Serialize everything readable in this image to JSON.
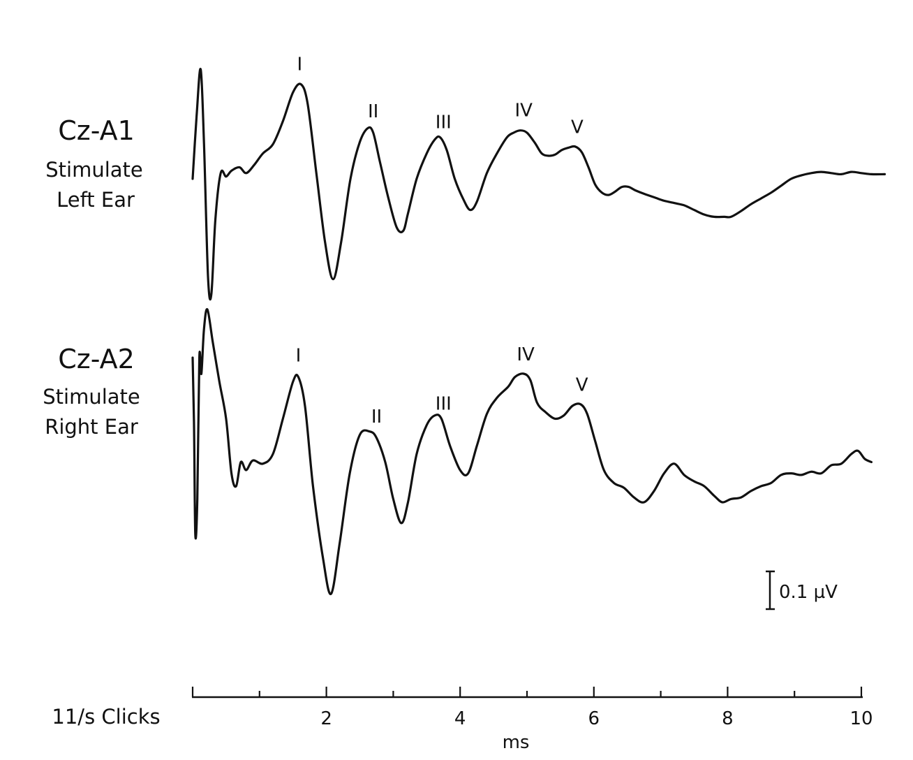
{
  "chart_data": {
    "type": "line",
    "xlabel": "ms",
    "stimulus_label": "11/s Clicks",
    "xlim": [
      0,
      10
    ],
    "x_ticks": [
      2,
      4,
      6,
      8,
      10
    ],
    "scale_bar_label": "0.1 µV",
    "scale_bar_value_uV": 0.1,
    "traces": [
      {
        "channel": "Cz-A1",
        "description_lines": [
          "Stimulate",
          "Left Ear"
        ],
        "peaks": [
          {
            "label": "I",
            "x": 1.6
          },
          {
            "label": "II",
            "x": 2.7
          },
          {
            "label": "III",
            "x": 3.75
          },
          {
            "label": "IV",
            "x": 4.95
          },
          {
            "label": "V",
            "x": 5.75
          }
        ],
        "points": [
          [
            0.0,
            0.0
          ],
          [
            0.06,
            0.55
          ],
          [
            0.12,
            0.95
          ],
          [
            0.17,
            0.3
          ],
          [
            0.23,
            -0.85
          ],
          [
            0.28,
            -1.0
          ],
          [
            0.34,
            -0.35
          ],
          [
            0.42,
            0.05
          ],
          [
            0.5,
            0.02
          ],
          [
            0.58,
            0.07
          ],
          [
            0.7,
            0.1
          ],
          [
            0.8,
            0.05
          ],
          [
            0.92,
            0.12
          ],
          [
            1.05,
            0.22
          ],
          [
            1.2,
            0.3
          ],
          [
            1.35,
            0.5
          ],
          [
            1.5,
            0.75
          ],
          [
            1.62,
            0.82
          ],
          [
            1.72,
            0.65
          ],
          [
            1.85,
            0.05
          ],
          [
            1.98,
            -0.55
          ],
          [
            2.1,
            -0.87
          ],
          [
            2.22,
            -0.55
          ],
          [
            2.36,
            0.0
          ],
          [
            2.5,
            0.32
          ],
          [
            2.62,
            0.44
          ],
          [
            2.7,
            0.4
          ],
          [
            2.8,
            0.15
          ],
          [
            2.92,
            -0.15
          ],
          [
            3.05,
            -0.42
          ],
          [
            3.15,
            -0.45
          ],
          [
            3.22,
            -0.3
          ],
          [
            3.35,
            0.0
          ],
          [
            3.5,
            0.22
          ],
          [
            3.62,
            0.34
          ],
          [
            3.7,
            0.36
          ],
          [
            3.8,
            0.25
          ],
          [
            3.92,
            0.0
          ],
          [
            4.05,
            -0.18
          ],
          [
            4.15,
            -0.27
          ],
          [
            4.25,
            -0.2
          ],
          [
            4.4,
            0.05
          ],
          [
            4.55,
            0.22
          ],
          [
            4.7,
            0.36
          ],
          [
            4.8,
            0.4
          ],
          [
            4.9,
            0.42
          ],
          [
            5.0,
            0.4
          ],
          [
            5.12,
            0.31
          ],
          [
            5.22,
            0.22
          ],
          [
            5.32,
            0.2
          ],
          [
            5.42,
            0.21
          ],
          [
            5.52,
            0.25
          ],
          [
            5.62,
            0.27
          ],
          [
            5.72,
            0.28
          ],
          [
            5.82,
            0.23
          ],
          [
            5.92,
            0.1
          ],
          [
            6.02,
            -0.05
          ],
          [
            6.12,
            -0.12
          ],
          [
            6.22,
            -0.14
          ],
          [
            6.32,
            -0.11
          ],
          [
            6.42,
            -0.07
          ],
          [
            6.52,
            -0.07
          ],
          [
            6.62,
            -0.1
          ],
          [
            6.75,
            -0.13
          ],
          [
            6.9,
            -0.16
          ],
          [
            7.05,
            -0.19
          ],
          [
            7.2,
            -0.21
          ],
          [
            7.35,
            -0.23
          ],
          [
            7.5,
            -0.27
          ],
          [
            7.65,
            -0.31
          ],
          [
            7.8,
            -0.33
          ],
          [
            7.95,
            -0.33
          ],
          [
            8.05,
            -0.33
          ],
          [
            8.2,
            -0.28
          ],
          [
            8.35,
            -0.22
          ],
          [
            8.5,
            -0.17
          ],
          [
            8.65,
            -0.12
          ],
          [
            8.8,
            -0.06
          ],
          [
            8.95,
            0.0
          ],
          [
            9.1,
            0.03
          ],
          [
            9.25,
            0.05
          ],
          [
            9.4,
            0.06
          ],
          [
            9.55,
            0.05
          ],
          [
            9.7,
            0.04
          ],
          [
            9.85,
            0.06
          ],
          [
            10.0,
            0.05
          ],
          [
            10.15,
            0.04
          ],
          [
            10.35,
            0.04
          ]
        ]
      },
      {
        "channel": "Cz-A2",
        "description_lines": [
          "Stimulate",
          "Right Ear"
        ],
        "peaks": [
          {
            "label": "I",
            "x": 1.58
          },
          {
            "label": "II",
            "x": 2.75
          },
          {
            "label": "III",
            "x": 3.75
          },
          {
            "label": "IV",
            "x": 4.98
          },
          {
            "label": "V",
            "x": 5.82
          }
        ],
        "points": [
          [
            0.0,
            0.6
          ],
          [
            0.02,
            0.2
          ],
          [
            0.04,
            -0.5
          ],
          [
            0.07,
            -0.28
          ],
          [
            0.1,
            0.6
          ],
          [
            0.13,
            0.5
          ],
          [
            0.17,
            0.78
          ],
          [
            0.22,
            0.9
          ],
          [
            0.3,
            0.7
          ],
          [
            0.4,
            0.45
          ],
          [
            0.5,
            0.22
          ],
          [
            0.58,
            -0.12
          ],
          [
            0.65,
            -0.2
          ],
          [
            0.72,
            -0.05
          ],
          [
            0.8,
            -0.1
          ],
          [
            0.9,
            -0.04
          ],
          [
            1.05,
            -0.06
          ],
          [
            1.2,
            0.0
          ],
          [
            1.35,
            0.22
          ],
          [
            1.5,
            0.45
          ],
          [
            1.58,
            0.48
          ],
          [
            1.68,
            0.3
          ],
          [
            1.8,
            -0.2
          ],
          [
            1.95,
            -0.65
          ],
          [
            2.07,
            -0.87
          ],
          [
            2.2,
            -0.55
          ],
          [
            2.35,
            -0.12
          ],
          [
            2.5,
            0.12
          ],
          [
            2.65,
            0.14
          ],
          [
            2.75,
            0.1
          ],
          [
            2.88,
            -0.05
          ],
          [
            3.0,
            -0.28
          ],
          [
            3.12,
            -0.43
          ],
          [
            3.22,
            -0.3
          ],
          [
            3.35,
            0.0
          ],
          [
            3.5,
            0.18
          ],
          [
            3.62,
            0.24
          ],
          [
            3.72,
            0.22
          ],
          [
            3.85,
            0.05
          ],
          [
            4.0,
            -0.1
          ],
          [
            4.12,
            -0.12
          ],
          [
            4.25,
            0.05
          ],
          [
            4.4,
            0.25
          ],
          [
            4.55,
            0.35
          ],
          [
            4.72,
            0.42
          ],
          [
            4.82,
            0.48
          ],
          [
            4.95,
            0.5
          ],
          [
            5.05,
            0.46
          ],
          [
            5.15,
            0.32
          ],
          [
            5.28,
            0.26
          ],
          [
            5.42,
            0.22
          ],
          [
            5.55,
            0.24
          ],
          [
            5.68,
            0.3
          ],
          [
            5.8,
            0.31
          ],
          [
            5.9,
            0.25
          ],
          [
            6.02,
            0.08
          ],
          [
            6.15,
            -0.1
          ],
          [
            6.3,
            -0.18
          ],
          [
            6.45,
            -0.21
          ],
          [
            6.6,
            -0.27
          ],
          [
            6.75,
            -0.3
          ],
          [
            6.9,
            -0.23
          ],
          [
            7.05,
            -0.12
          ],
          [
            7.2,
            -0.06
          ],
          [
            7.35,
            -0.13
          ],
          [
            7.5,
            -0.17
          ],
          [
            7.65,
            -0.2
          ],
          [
            7.8,
            -0.26
          ],
          [
            7.92,
            -0.3
          ],
          [
            8.05,
            -0.28
          ],
          [
            8.2,
            -0.27
          ],
          [
            8.35,
            -0.23
          ],
          [
            8.5,
            -0.2
          ],
          [
            8.65,
            -0.18
          ],
          [
            8.8,
            -0.13
          ],
          [
            8.95,
            -0.12
          ],
          [
            9.1,
            -0.13
          ],
          [
            9.25,
            -0.11
          ],
          [
            9.4,
            -0.12
          ],
          [
            9.55,
            -0.07
          ],
          [
            9.7,
            -0.06
          ],
          [
            9.85,
            0.0
          ],
          [
            9.95,
            0.02
          ],
          [
            10.05,
            -0.03
          ],
          [
            10.15,
            -0.05
          ]
        ]
      }
    ]
  }
}
